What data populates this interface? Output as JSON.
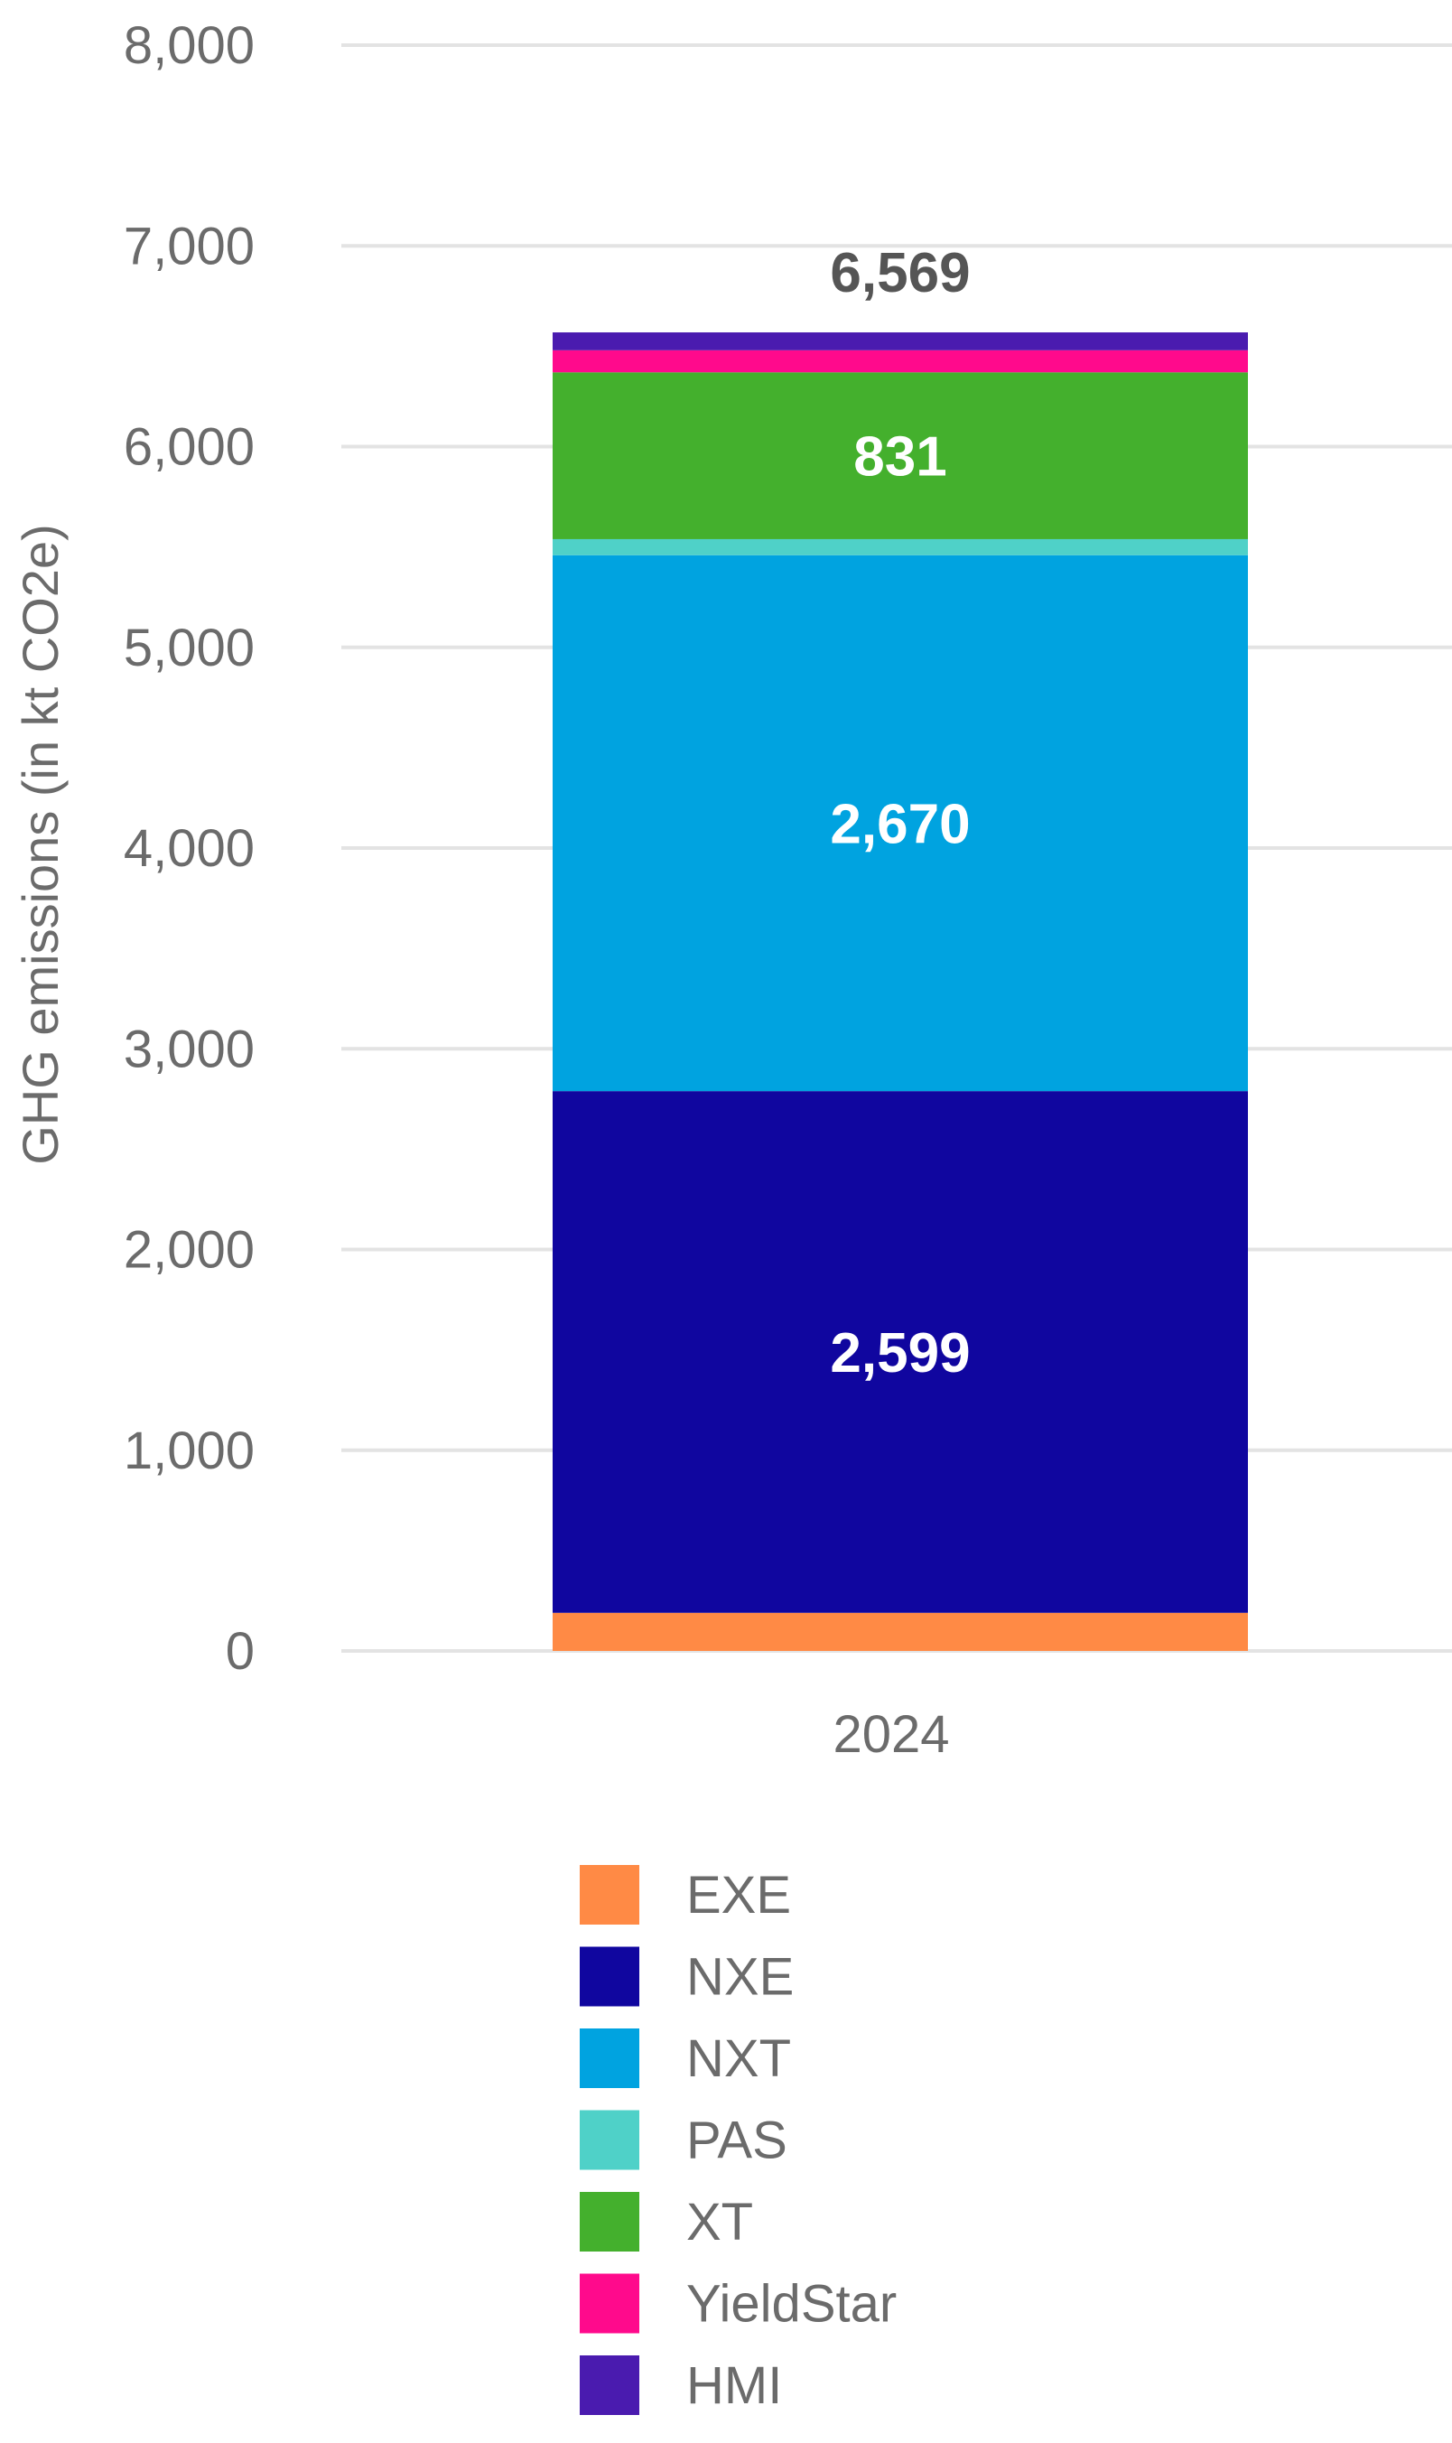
{
  "chart_data": {
    "type": "bar",
    "stacked": true,
    "categories": [
      "2024"
    ],
    "ylabel": "GHG emissions (in kt CO2e)",
    "ylim": [
      0,
      8000
    ],
    "yticks": [
      0,
      1000,
      2000,
      3000,
      4000,
      5000,
      6000,
      7000,
      8000
    ],
    "ytick_labels": [
      "0",
      "1,000",
      "2,000",
      "3,000",
      "4,000",
      "5,000",
      "6,000",
      "7,000",
      "8,000"
    ],
    "grid": true,
    "legend_position": "bottom",
    "series": [
      {
        "name": "EXE",
        "values": [
          190
        ],
        "color": "#FF8A45",
        "label": ""
      },
      {
        "name": "NXE",
        "values": [
          2599
        ],
        "color": "#10069F",
        "label": "2,599"
      },
      {
        "name": "NXT",
        "values": [
          2670
        ],
        "color": "#00A3E0",
        "label": "2,670"
      },
      {
        "name": "PAS",
        "values": [
          80
        ],
        "color": "#4FD1C8",
        "label": ""
      },
      {
        "name": "XT",
        "values": [
          831
        ],
        "color": "#44B02D",
        "label": "831"
      },
      {
        "name": "YieldStar",
        "values": [
          110
        ],
        "color": "#FF0A8C",
        "label": ""
      },
      {
        "name": "HMI",
        "values": [
          89
        ],
        "color": "#4A1BAF",
        "label": ""
      }
    ],
    "totals": [
      "6,569"
    ]
  }
}
